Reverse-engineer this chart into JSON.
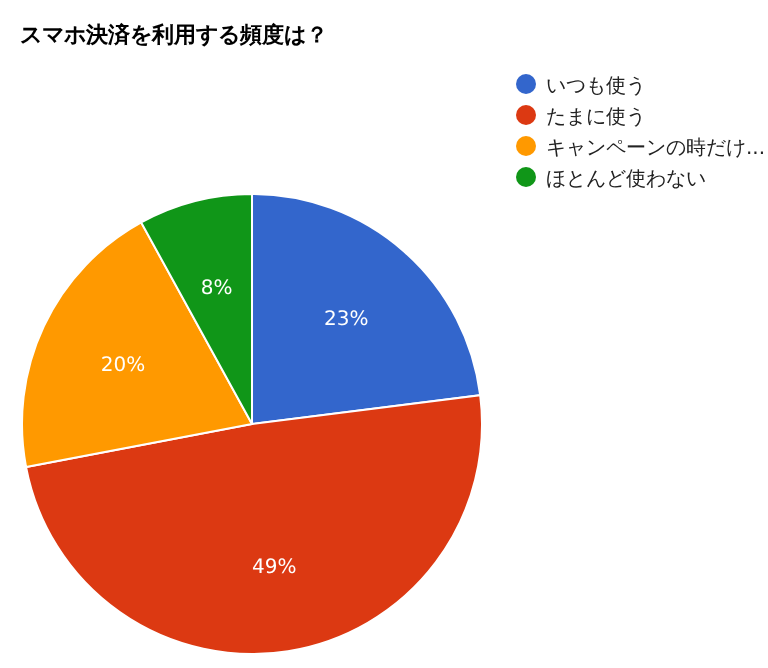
{
  "chart_data": {
    "type": "pie",
    "title": "スマホ決済を利用する頻度は？",
    "categories": [
      "いつも使う",
      "たまに使う",
      "キャンペーンの時だけ...",
      "ほとんど使わない"
    ],
    "values": [
      23,
      49,
      20,
      8
    ],
    "colors": [
      "#3366cc",
      "#dc3912",
      "#ff9900",
      "#109618"
    ],
    "value_labels": [
      "23%",
      "49%",
      "20%",
      "8%"
    ],
    "legend": "right"
  }
}
